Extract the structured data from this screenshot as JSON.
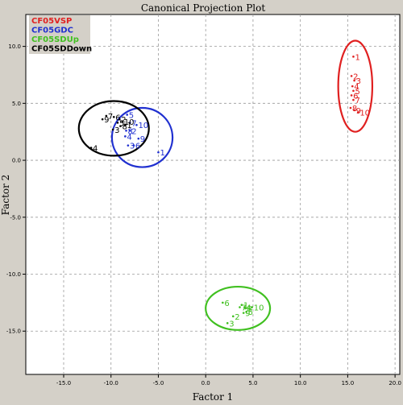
{
  "chart_data": {
    "type": "scatter",
    "title": "Canonical Projection Plot",
    "xlabel": "Factor 1",
    "ylabel": "Factor 2",
    "xlim": [
      -19,
      20.5
    ],
    "ylim": [
      -18.8,
      12.8
    ],
    "xticks": [
      -15,
      -10,
      -5,
      0,
      5,
      10,
      15,
      20
    ],
    "yticks": [
      10,
      5,
      0,
      -5,
      -10,
      -15
    ],
    "xtick_labels": [
      "-15.0",
      "-10.0",
      "-5.0",
      "0.0",
      "5.0",
      "10.0",
      "15.0",
      "20.0"
    ],
    "ytick_labels": [
      "10.0",
      "5.0",
      "0.0",
      "-5.0",
      "-10.0",
      "-15.0"
    ],
    "grid": true,
    "legend_position": "top-left",
    "series": [
      {
        "name": "CF05VSP",
        "color": "#e02020",
        "ellipse": {
          "cx": 15.8,
          "cy": 6.5,
          "rx": 1.8,
          "ry": 4.0
        },
        "points": [
          {
            "label": "1",
            "x": 15.6,
            "y": 9.1
          },
          {
            "label": "2",
            "x": 15.4,
            "y": 7.4
          },
          {
            "label": "3",
            "x": 15.7,
            "y": 7.0
          },
          {
            "label": "4",
            "x": 15.5,
            "y": 6.5
          },
          {
            "label": "5",
            "x": 15.6,
            "y": 6.1
          },
          {
            "label": "6",
            "x": 15.4,
            "y": 5.7
          },
          {
            "label": "7",
            "x": 15.6,
            "y": 5.3
          },
          {
            "label": "8",
            "x": 15.3,
            "y": 4.6
          },
          {
            "label": "9",
            "x": 15.7,
            "y": 4.4
          },
          {
            "label": "10",
            "x": 16.1,
            "y": 4.2
          }
        ]
      },
      {
        "name": "CF05GDC",
        "color": "#2030d0",
        "ellipse": {
          "cx": -6.7,
          "cy": 2.0,
          "rx": 3.2,
          "ry": 2.6
        },
        "points": [
          {
            "label": "1",
            "x": -5.0,
            "y": 0.7
          },
          {
            "label": "2",
            "x": -8.0,
            "y": 2.6
          },
          {
            "label": "3",
            "x": -8.2,
            "y": 1.3
          },
          {
            "label": "4",
            "x": -8.5,
            "y": 2.1
          },
          {
            "label": "5",
            "x": -8.3,
            "y": 4.0
          },
          {
            "label": "6",
            "x": -7.6,
            "y": 1.3
          },
          {
            "label": "7",
            "x": -8.0,
            "y": 3.3
          },
          {
            "label": "8",
            "x": -8.4,
            "y": 2.6
          },
          {
            "label": "9",
            "x": -7.1,
            "y": 1.9
          },
          {
            "label": "10",
            "x": -7.3,
            "y": 3.1
          }
        ]
      },
      {
        "name": "CF05SDUp",
        "color": "#40c020",
        "ellipse": {
          "cx": 3.4,
          "cy": -13.0,
          "rx": 3.4,
          "ry": 1.9
        },
        "points": [
          {
            "label": "1",
            "x": 3.8,
            "y": -12.7
          },
          {
            "label": "2",
            "x": 2.9,
            "y": -13.7
          },
          {
            "label": "3",
            "x": 2.3,
            "y": -14.3
          },
          {
            "label": "4",
            "x": 4.1,
            "y": -12.9
          },
          {
            "label": "5",
            "x": 4.3,
            "y": -13.3
          },
          {
            "label": "6",
            "x": 1.8,
            "y": -12.5
          },
          {
            "label": "7",
            "x": 3.6,
            "y": -12.9
          },
          {
            "label": "8",
            "x": 4.2,
            "y": -13.0
          },
          {
            "label": "9",
            "x": 4.0,
            "y": -13.4
          },
          {
            "label": "10",
            "x": 4.9,
            "y": -12.9
          }
        ]
      },
      {
        "name": "CF05SDDown",
        "color": "#000000",
        "ellipse": {
          "cx": -9.7,
          "cy": 2.8,
          "rx": 3.7,
          "ry": 2.4
        },
        "points": [
          {
            "label": "1",
            "x": -8.5,
            "y": 3.1
          },
          {
            "label": "2",
            "x": -9.1,
            "y": 3.6
          },
          {
            "label": "3",
            "x": -9.8,
            "y": 2.7
          },
          {
            "label": "4",
            "x": -12.1,
            "y": 1.1
          },
          {
            "label": "5",
            "x": -9.3,
            "y": 3.3
          },
          {
            "label": "6",
            "x": -9.7,
            "y": 3.8
          },
          {
            "label": "7",
            "x": -10.5,
            "y": 3.9
          },
          {
            "label": "8",
            "x": -9.0,
            "y": 3.0
          },
          {
            "label": "9",
            "x": -10.9,
            "y": 3.6
          },
          {
            "label": "10",
            "x": -8.8,
            "y": 3.4
          }
        ]
      }
    ]
  }
}
